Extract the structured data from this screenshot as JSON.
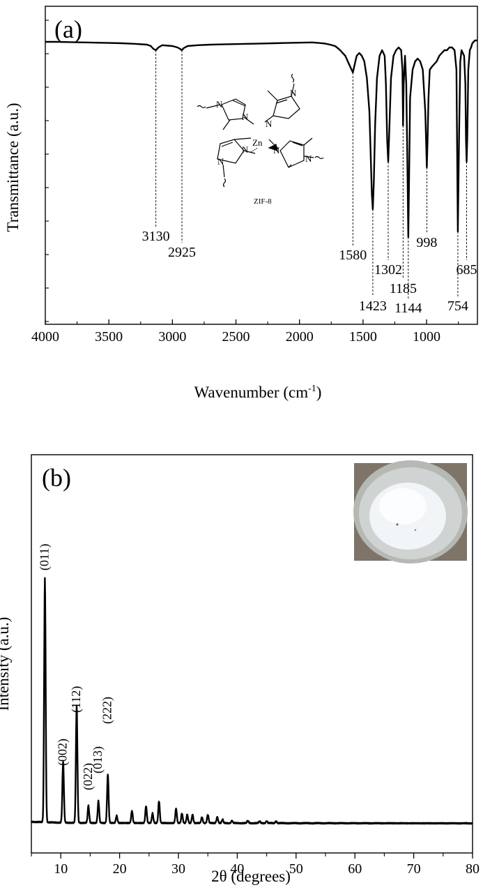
{
  "chart_data": [
    {
      "type": "line",
      "panel_label": "(a)",
      "xlabel_main": "Wavenumber (cm",
      "xlabel_sup": "-1",
      "xlabel_close": ")",
      "ylabel": "Transmittance (a.u.)",
      "xlim": [
        4000,
        600
      ],
      "x_reversed": true,
      "xticks": [
        4000,
        3500,
        3000,
        2500,
        2000,
        1500,
        1000
      ],
      "yticks_shown": false,
      "baseline": 0.95,
      "series": [
        {
          "x": [
            4000,
            3900,
            3800,
            3700,
            3600,
            3500,
            3400,
            3300,
            3200,
            3170,
            3150,
            3130,
            3110,
            3080,
            3000,
            2960,
            2940,
            2925,
            2910,
            2880,
            2800,
            2700,
            2600,
            2500,
            2400,
            2300,
            2200,
            2100,
            2000,
            1900,
            1850,
            1800,
            1760,
            1720,
            1700,
            1680,
            1660,
            1640,
            1620,
            1600,
            1590,
            1580,
            1570,
            1560,
            1550,
            1530,
            1510,
            1490,
            1470,
            1450,
            1440,
            1430,
            1423,
            1415,
            1405,
            1390,
            1370,
            1350,
            1330,
            1320,
            1310,
            1302,
            1294,
            1280,
            1260,
            1240,
            1220,
            1200,
            1190,
            1185,
            1180,
            1170,
            1160,
            1152,
            1148,
            1144,
            1138,
            1130,
            1110,
            1090,
            1070,
            1050,
            1030,
            1010,
            1004,
            998,
            992,
            985,
            975,
            960,
            940,
            920,
            900,
            880,
            860,
            840,
            820,
            800,
            780,
            765,
            754,
            745,
            735,
            725,
            715,
            705,
            695,
            690,
            685,
            680,
            672,
            660,
            650,
            640,
            630,
            620,
            610,
            600
          ],
          "y": [
            0.95,
            0.95,
            0.949,
            0.948,
            0.947,
            0.946,
            0.945,
            0.943,
            0.94,
            0.935,
            0.925,
            0.92,
            0.93,
            0.938,
            0.935,
            0.93,
            0.925,
            0.92,
            0.928,
            0.935,
            0.938,
            0.94,
            0.941,
            0.942,
            0.943,
            0.944,
            0.945,
            0.946,
            0.947,
            0.948,
            0.946,
            0.944,
            0.94,
            0.935,
            0.928,
            0.92,
            0.91,
            0.9,
            0.88,
            0.86,
            0.85,
            0.84,
            0.86,
            0.88,
            0.9,
            0.91,
            0.9,
            0.88,
            0.82,
            0.7,
            0.55,
            0.4,
            0.35,
            0.45,
            0.65,
            0.82,
            0.9,
            0.92,
            0.9,
            0.8,
            0.6,
            0.52,
            0.62,
            0.82,
            0.9,
            0.92,
            0.93,
            0.92,
            0.85,
            0.65,
            0.8,
            0.9,
            0.8,
            0.55,
            0.4,
            0.25,
            0.45,
            0.75,
            0.85,
            0.88,
            0.89,
            0.88,
            0.85,
            0.7,
            0.6,
            0.5,
            0.6,
            0.75,
            0.85,
            0.86,
            0.87,
            0.88,
            0.9,
            0.91,
            0.92,
            0.92,
            0.93,
            0.93,
            0.92,
            0.85,
            0.27,
            0.6,
            0.88,
            0.92,
            0.91,
            0.9,
            0.8,
            0.6,
            0.52,
            0.6,
            0.85,
            0.92,
            0.93,
            0.945,
            0.95,
            0.955,
            0.955,
            0.955
          ]
        }
      ],
      "annotations": [
        {
          "x": 3130,
          "text": "3130"
        },
        {
          "x": 2925,
          "text": "2925"
        },
        {
          "x": 1580,
          "text": "1580"
        },
        {
          "x": 1423,
          "text": "1423"
        },
        {
          "x": 1302,
          "text": "1302"
        },
        {
          "x": 1185,
          "text": "1185"
        },
        {
          "x": 1144,
          "text": "1144"
        },
        {
          "x": 998,
          "text": "998"
        },
        {
          "x": 754,
          "text": "754"
        },
        {
          "x": 685,
          "text": "685"
        }
      ],
      "inset_structure": {
        "atoms": [
          "N",
          "N",
          "N",
          "N",
          "N",
          "N",
          "N",
          "N",
          "Zn"
        ],
        "caption": "ZIF-8"
      }
    },
    {
      "type": "line",
      "panel_label": "(b)",
      "xlabel": "2θ (degrees)",
      "ylabel": "Intensity (a.u.)",
      "xlim": [
        5,
        80
      ],
      "xticks": [
        10,
        20,
        30,
        40,
        50,
        60,
        70,
        80
      ],
      "yticks_shown": false,
      "series": [
        {
          "peaks": [
            {
              "x": 7.3,
              "y": 1.0
            },
            {
              "x": 10.4,
              "y": 0.25
            },
            {
              "x": 12.7,
              "y": 0.48
            },
            {
              "x": 14.7,
              "y": 0.07
            },
            {
              "x": 16.4,
              "y": 0.09
            },
            {
              "x": 18.0,
              "y": 0.2
            },
            {
              "x": 19.5,
              "y": 0.03
            },
            {
              "x": 22.1,
              "y": 0.05
            },
            {
              "x": 24.5,
              "y": 0.07
            },
            {
              "x": 25.6,
              "y": 0.04
            },
            {
              "x": 26.7,
              "y": 0.09
            },
            {
              "x": 29.6,
              "y": 0.06
            },
            {
              "x": 30.6,
              "y": 0.04
            },
            {
              "x": 31.5,
              "y": 0.035
            },
            {
              "x": 32.4,
              "y": 0.035
            },
            {
              "x": 34.0,
              "y": 0.025
            },
            {
              "x": 35.0,
              "y": 0.035
            },
            {
              "x": 36.6,
              "y": 0.025
            },
            {
              "x": 37.5,
              "y": 0.015
            },
            {
              "x": 39.1,
              "y": 0.01
            },
            {
              "x": 41.8,
              "y": 0.01
            },
            {
              "x": 43.8,
              "y": 0.008
            },
            {
              "x": 45.0,
              "y": 0.008
            },
            {
              "x": 46.6,
              "y": 0.008
            }
          ],
          "background": 0.0
        }
      ],
      "peak_labels": [
        {
          "x": 7.3,
          "text": "(011)"
        },
        {
          "x": 10.4,
          "text": "(002)"
        },
        {
          "x": 12.7,
          "text": "(112)"
        },
        {
          "x": 14.7,
          "text": "(022)"
        },
        {
          "x": 16.4,
          "text": "(013)"
        },
        {
          "x": 18.0,
          "text": "(222)"
        }
      ],
      "inset_photo": "petri dish with white ZIF-8 powder"
    }
  ]
}
